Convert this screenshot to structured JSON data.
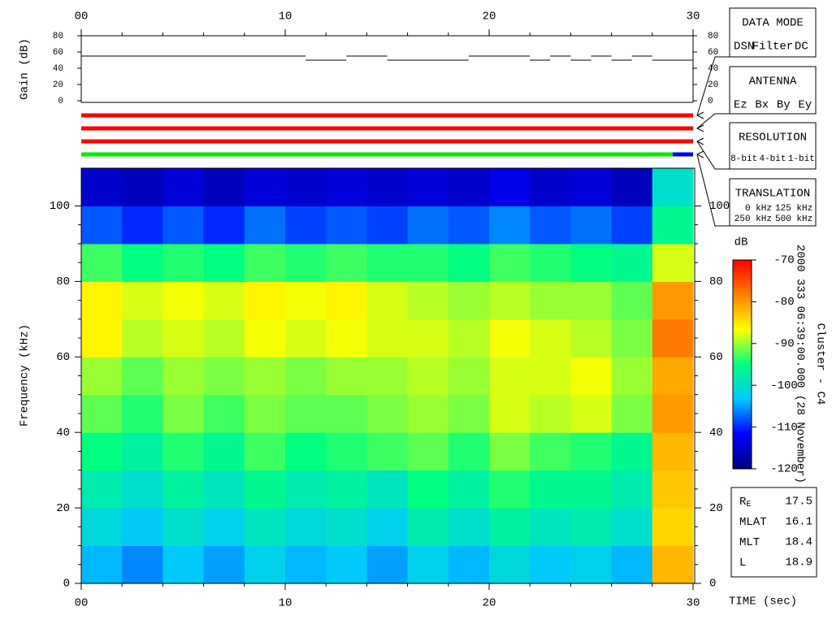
{
  "chart_data": [
    {
      "type": "line",
      "y_label": "Gain (dB)",
      "color": "#000000",
      "x": [
        0,
        11,
        11,
        11,
        13,
        13,
        13,
        15,
        15,
        15,
        19,
        19,
        19,
        22,
        22,
        22,
        23,
        23,
        23,
        24,
        24,
        24,
        25,
        25,
        25,
        26,
        26,
        26,
        27,
        27,
        27,
        28,
        28,
        28,
        30
      ],
      "values": [
        55,
        55,
        null,
        50,
        50,
        null,
        55,
        55,
        null,
        50,
        50,
        null,
        55,
        55,
        null,
        50,
        50,
        null,
        55,
        55,
        null,
        50,
        50,
        null,
        55,
        55,
        null,
        50,
        50,
        null,
        55,
        55,
        null,
        50,
        50
      ],
      "xlim": [
        0,
        30
      ],
      "xticks": [
        {
          "value": 0,
          "label": "00"
        },
        10,
        20,
        30
      ],
      "ylim": [
        0,
        80
      ],
      "yticks": [
        0,
        20,
        40,
        60,
        80
      ]
    },
    {
      "type": "timeline",
      "xlim": [
        0,
        30
      ],
      "rows": [
        {
          "segments": [
            {
              "start": 0,
              "end": 30,
              "color": "#ff0000"
            }
          ]
        },
        {
          "segments": [
            {
              "start": 0,
              "end": 30,
              "color": "#ff0000"
            }
          ]
        },
        {
          "segments": [
            {
              "start": 0,
              "end": 30,
              "color": "#ff0000"
            }
          ]
        },
        {
          "segments": [
            {
              "start": 0,
              "end": 29,
              "color": "#00ee00"
            },
            {
              "start": 29,
              "end": 30,
              "color": "#0000ff"
            }
          ]
        }
      ],
      "panels": [
        {
          "title": "DATA MODE",
          "items": [
            {
              "label": "DSN",
              "color": "#ff0000"
            },
            {
              "label": "Filter",
              "color": "#00dd00"
            },
            {
              "label": "DC",
              "color": "#0000ff"
            }
          ]
        },
        {
          "title": "ANTENNA",
          "items": [
            {
              "label": "Ez",
              "color": "#ff0000"
            },
            {
              "label": "Bx",
              "color": "#00dd00"
            },
            {
              "label": "By",
              "color": "#0000ff"
            },
            {
              "label": "Ey",
              "color": "#000000"
            }
          ]
        },
        {
          "title": "RESOLUTION",
          "items": [
            {
              "label": "8-bit",
              "color": "#ff0000"
            },
            {
              "label": "4-bit",
              "color": "#00dd00"
            },
            {
              "label": "1-bit",
              "color": "#0000ff"
            }
          ]
        },
        {
          "title": "TRANSLATION",
          "items": [
            {
              "label": "0 kHz",
              "color": "#ff0000"
            },
            {
              "label": "125 kHz",
              "color": "#00dd00"
            },
            {
              "label": "250 kHz",
              "color": "#0000ff"
            },
            {
              "label": "500 kHz",
              "color": "#000000"
            }
          ]
        }
      ]
    },
    {
      "type": "heatmap",
      "y_label": "Frequency (kHz)",
      "x_label": "TIME (sec)",
      "xlim": [
        0,
        30
      ],
      "xticks": [
        {
          "value": 0,
          "label": "00"
        },
        10,
        20,
        30
      ],
      "ylim": [
        0,
        110
      ],
      "yticks": [
        0,
        20,
        40,
        60,
        80,
        100
      ],
      "x_bins": [
        0,
        2,
        4,
        6,
        8,
        10,
        12,
        14,
        16,
        18,
        20,
        22,
        24,
        26,
        28,
        30
      ],
      "y_bins": [
        0,
        10,
        20,
        30,
        40,
        50,
        60,
        70,
        80,
        90,
        100,
        110
      ],
      "values": [
        [
          -104,
          -106,
          -103,
          -105,
          -102,
          -104,
          -103,
          -105,
          -102,
          -104,
          -101,
          -103,
          -102,
          -104,
          -82
        ],
        [
          -101,
          -103,
          -100,
          -102,
          -99,
          -101,
          -100,
          -102,
          -98,
          -100,
          -97,
          -99,
          -98,
          -100,
          -84
        ],
        [
          -98,
          -100,
          -97,
          -99,
          -96,
          -98,
          -97,
          -99,
          -95,
          -97,
          -94,
          -96,
          -96,
          -98,
          -83
        ],
        [
          -95,
          -97,
          -94,
          -96,
          -93,
          -95,
          -94,
          -93,
          -92,
          -94,
          -91,
          -93,
          -94,
          -96,
          -82
        ],
        [
          -92,
          -94,
          -91,
          -93,
          -91,
          -92,
          -92,
          -91,
          -90,
          -91,
          -88,
          -89,
          -88,
          -91,
          -80
        ],
        [
          -90,
          -92,
          -90,
          -91,
          -90,
          -91,
          -90,
          -90,
          -89,
          -90,
          -88,
          -88,
          -87,
          -90,
          -81
        ],
        [
          -86,
          -89,
          -88,
          -89,
          -87,
          -88,
          -87,
          -88,
          -88,
          -89,
          -87,
          -88,
          -89,
          -91,
          -78
        ],
        [
          -86,
          -88,
          -87,
          -88,
          -86,
          -87,
          -86,
          -88,
          -89,
          -90,
          -89,
          -90,
          -90,
          -92,
          -80
        ],
        [
          -93,
          -95,
          -94,
          -95,
          -93,
          -94,
          -93,
          -94,
          -94,
          -95,
          -93,
          -94,
          -95,
          -96,
          -88
        ],
        [
          -108,
          -110,
          -108,
          -110,
          -107,
          -109,
          -108,
          -109,
          -107,
          -108,
          -106,
          -108,
          -107,
          -109,
          -96
        ],
        [
          -115,
          -116,
          -114,
          -116,
          -114,
          -115,
          -114,
          -115,
          -114,
          -115,
          -113,
          -115,
          -114,
          -116,
          -100
        ]
      ]
    },
    {
      "type": "colorbar",
      "label": "dB",
      "lim": [
        -120,
        -70
      ],
      "ticks": [
        -120,
        -110,
        -100,
        -90,
        -80,
        -70
      ],
      "colormap": [
        "#00007f",
        "#0000ff",
        "#00c8ff",
        "#00ff80",
        "#ffff00",
        "#ff8000",
        "#ff0000"
      ],
      "annotations": [
        "2000 333 06:39:00.000 (28 November)",
        "Cluster - C4"
      ]
    }
  ],
  "info_panel": {
    "rows": [
      {
        "label": "R",
        "sub": "E",
        "value": 17.5
      },
      {
        "label": "MLAT",
        "value": 16.1
      },
      {
        "label": "MLT",
        "value": 18.4
      },
      {
        "label": "L",
        "value": 18.9
      }
    ]
  }
}
